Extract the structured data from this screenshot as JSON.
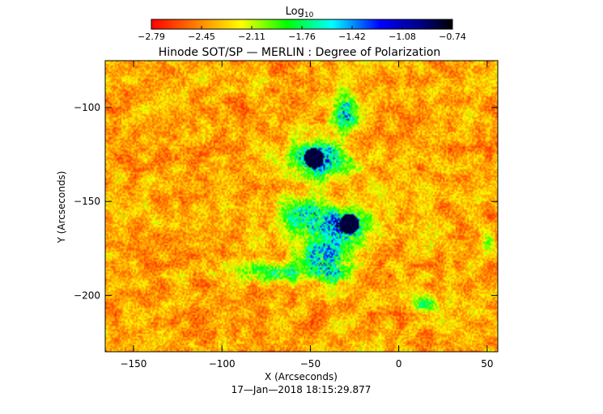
{
  "chart_data": {
    "type": "heatmap",
    "title": "Hinode SOT/SP — MERLIN : Degree of Polarization",
    "xlabel": "X (Arcseconds)",
    "ylabel": "Y (Arcseconds)",
    "timestamp": "17—Jan—2018 18:15:29.877",
    "xlim": [
      -166,
      56
    ],
    "ylim": [
      -230,
      -75
    ],
    "x_ticks": [
      -150,
      -100,
      -50,
      0,
      50
    ],
    "x_tick_labels": [
      "−150",
      "−100",
      "−50",
      "0",
      "50"
    ],
    "y_ticks": [
      -100,
      -150,
      -200
    ],
    "y_tick_labels": [
      "−100",
      "−150",
      "−200"
    ],
    "colorbar": {
      "label": "Log",
      "label_sub": "10",
      "range": [
        -2.79,
        -0.74
      ],
      "tick_labels": [
        "−2.79",
        "−2.45",
        "−2.11",
        "−1.76",
        "−1.42",
        "−1.08",
        "−0.74"
      ],
      "colors": [
        "#ff0000",
        "#ff8000",
        "#ffff00",
        "#00ff00",
        "#00ffff",
        "#0000ff",
        "#000080",
        "#000000"
      ]
    },
    "background_level": -2.6,
    "features": [
      {
        "label": "strong polarization patch",
        "x": -48,
        "y": -127,
        "value": -0.8
      },
      {
        "label": "strong polarization patch",
        "x": -28,
        "y": -162,
        "value": -0.75
      }
    ]
  }
}
